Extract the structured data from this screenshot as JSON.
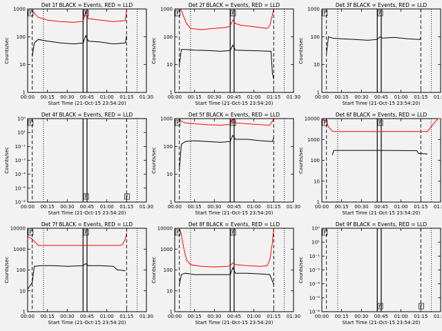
{
  "figure": {
    "xtick_labels": [
      "00:00",
      "00:15",
      "00:30",
      "00:45",
      "01:00",
      "01:15",
      "01:30"
    ],
    "xlabel": "Start Time (21-Oct-15 23:54:20)",
    "ylabel": "Counts/sec",
    "series_colors": {
      "events": "#000000",
      "lld": "#ff0000"
    },
    "markers": {
      "dashed": [
        3.5,
        75
      ],
      "dotted": [
        12,
        83
      ],
      "solid": [
        42,
        45
      ]
    }
  },
  "chart_data": [
    {
      "type": "line",
      "title": "Det 1f BLACK = Events, RED = LLD",
      "scale": "log",
      "ytick_labels": [
        "1",
        "10",
        "100",
        "1000"
      ],
      "ylim": [
        1,
        1000
      ],
      "series": [
        {
          "key": "lld",
          "x": [
            3.5,
            5,
            8,
            15,
            25,
            35,
            42,
            44,
            46,
            55,
            65,
            74,
            75
          ],
          "values": [
            900,
            700,
            500,
            400,
            350,
            330,
            360,
            800,
            450,
            400,
            350,
            380,
            900
          ]
        },
        {
          "key": "events",
          "x": [
            3.5,
            5,
            8,
            15,
            25,
            35,
            42,
            44,
            46,
            55,
            65,
            74,
            75
          ],
          "values": [
            20,
            60,
            80,
            70,
            60,
            55,
            60,
            110,
            70,
            65,
            55,
            60,
            110
          ]
        }
      ],
      "annotations": [
        "F",
        "F"
      ]
    },
    {
      "type": "line",
      "title": "Det 2f BLACK = Events, RED = LLD",
      "scale": "log",
      "ytick_labels": [
        "1",
        "10",
        "100",
        "1000"
      ],
      "ylim": [
        1,
        1000
      ],
      "series": [
        {
          "key": "lld",
          "x": [
            3.5,
            5,
            7,
            9,
            12,
            20,
            30,
            40,
            42,
            44,
            46,
            50,
            60,
            70,
            72,
            74,
            75
          ],
          "values": [
            1000,
            900,
            500,
            300,
            200,
            180,
            200,
            220,
            250,
            400,
            300,
            260,
            230,
            200,
            250,
            600,
            1000
          ]
        },
        {
          "key": "events",
          "x": [
            3.5,
            5,
            8,
            15,
            25,
            35,
            42,
            44,
            46,
            55,
            65,
            73,
            74,
            75
          ],
          "values": [
            10,
            35,
            35,
            33,
            32,
            30,
            32,
            50,
            33,
            32,
            31,
            30,
            5,
            3
          ]
        }
      ],
      "annotations": [
        "F",
        "F"
      ]
    },
    {
      "type": "line",
      "title": "Det 3f BLACK = Events, RED = LLD",
      "scale": "log",
      "ytick_labels": [
        "1",
        "10",
        "100",
        "1000"
      ],
      "ylim": [
        1,
        1000
      ],
      "series": [
        {
          "key": "events",
          "x": [
            3.5,
            5,
            8,
            15,
            25,
            35,
            42,
            44,
            46,
            55,
            65,
            74,
            75
          ],
          "values": [
            25,
            100,
            90,
            85,
            80,
            75,
            80,
            100,
            90,
            95,
            85,
            80,
            90
          ]
        }
      ],
      "annotations": [
        "F",
        "F"
      ]
    },
    {
      "type": "line",
      "title": "Det 4f BLACK = Events, RED = LLD",
      "scale": "log",
      "ytick_labels": [
        "10⁻⁸",
        "10⁻⁶",
        "10⁻⁴",
        "10⁻³",
        "10⁻¹",
        "10¹",
        "10⁰"
      ],
      "ylim": [
        1,
        1000
      ],
      "series": [],
      "annotations": [
        "F",
        "F",
        "F"
      ]
    },
    {
      "type": "line",
      "title": "Det 5f BLACK = Events, RED = LLD",
      "scale": "log",
      "ytick_labels": [
        "1",
        "10",
        "100",
        "1000"
      ],
      "ylim": [
        1,
        1000
      ],
      "series": [
        {
          "key": "lld",
          "x": [
            3.5,
            5,
            8,
            15,
            25,
            35,
            42,
            44,
            46,
            55,
            65,
            72,
            74,
            75
          ],
          "values": [
            1000,
            800,
            700,
            650,
            600,
            580,
            620,
            1000,
            700,
            650,
            600,
            580,
            800,
            1000
          ]
        },
        {
          "key": "events",
          "x": [
            3.5,
            5,
            8,
            15,
            25,
            35,
            42,
            44,
            46,
            55,
            65,
            74,
            75
          ],
          "values": [
            15,
            120,
            150,
            160,
            150,
            140,
            150,
            250,
            180,
            180,
            160,
            150,
            200
          ]
        }
      ],
      "annotations": [
        "F",
        "F"
      ]
    },
    {
      "type": "line",
      "title": "Det 6f BLACK = Events, RED = LLD",
      "scale": "log",
      "ytick_labels": [
        "1",
        "10",
        "100",
        "1000",
        "10000"
      ],
      "ylim": [
        1,
        10000
      ],
      "series": [
        {
          "key": "lld",
          "x": [
            0,
            3.5,
            5,
            8,
            10,
            42,
            45,
            80,
            85,
            88,
            90
          ],
          "values": [
            10000,
            7000,
            4000,
            2500,
            2400,
            2400,
            2400,
            2400,
            6000,
            10000,
            10000
          ]
        },
        {
          "key": "events",
          "x": [
            8,
            9,
            12,
            30,
            42,
            45,
            72,
            73,
            80
          ],
          "values": [
            180,
            300,
            300,
            300,
            300,
            300,
            290,
            220,
            200
          ]
        }
      ],
      "annotations": [
        "F",
        "F"
      ]
    },
    {
      "type": "line",
      "title": "Det 7f BLACK = Events, RED = LLD",
      "scale": "log",
      "ytick_labels": [
        "1",
        "10",
        "100",
        "1000",
        "10000"
      ],
      "ylim": [
        1,
        10000
      ],
      "series": [
        {
          "key": "lld",
          "x": [
            0,
            3.5,
            8,
            15,
            30,
            42,
            45,
            70,
            72,
            74,
            75
          ],
          "values": [
            4000,
            3000,
            1500,
            1500,
            1500,
            1500,
            1500,
            1500,
            1700,
            3000,
            6000
          ]
        },
        {
          "key": "events",
          "x": [
            0,
            3.5,
            5,
            10,
            20,
            30,
            42,
            44,
            46,
            55,
            65,
            68,
            70,
            74
          ],
          "values": [
            12,
            25,
            150,
            160,
            160,
            150,
            160,
            200,
            160,
            160,
            150,
            100,
            100,
            90
          ]
        }
      ],
      "annotations": [
        "F",
        "F"
      ]
    },
    {
      "type": "line",
      "title": "Det 8f BLACK = Events, RED = LLD",
      "scale": "log",
      "ytick_labels": [
        "1",
        "10",
        "100",
        "1000",
        "10000"
      ],
      "ylim": [
        1,
        10000
      ],
      "series": [
        {
          "key": "lld",
          "x": [
            3.5,
            5,
            7,
            9,
            12,
            20,
            30,
            40,
            42,
            44,
            46,
            55,
            65,
            70,
            72,
            74,
            75
          ],
          "values": [
            10000,
            5000,
            1000,
            300,
            180,
            150,
            140,
            150,
            160,
            220,
            180,
            160,
            150,
            160,
            300,
            2000,
            10000
          ]
        },
        {
          "key": "events",
          "x": [
            3.5,
            5,
            8,
            15,
            25,
            35,
            42,
            44,
            46,
            55,
            65,
            72,
            74,
            75
          ],
          "values": [
            20,
            60,
            70,
            60,
            60,
            60,
            60,
            130,
            70,
            70,
            65,
            60,
            30,
            20
          ]
        }
      ],
      "annotations": [
        "F",
        "F"
      ]
    },
    {
      "type": "line",
      "title": "Det 9f BLACK = Events, RED = LLD",
      "scale": "log",
      "ytick_labels": [
        "10⁻⁸",
        "10⁻⁶",
        "10⁻⁴",
        "10⁻³",
        "10⁻¹",
        "10¹",
        "10⁰"
      ],
      "ylim": [
        1,
        1000
      ],
      "series": [],
      "annotations": [
        "F",
        "F",
        "F"
      ]
    }
  ]
}
